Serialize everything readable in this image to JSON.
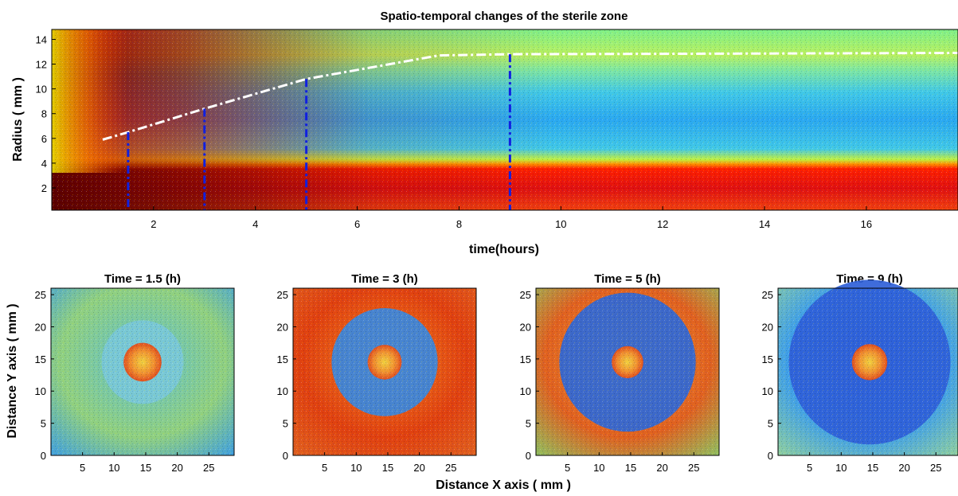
{
  "chart_data": [
    {
      "type": "heatmap",
      "title": "Spatio-temporal changes of the sterile zone",
      "xlabel": "time(hours)",
      "ylabel": "Radius ( mm )",
      "xlim": [
        0,
        17.8
      ],
      "ylim": [
        0.2,
        14.8
      ],
      "xticks": [
        2,
        4,
        6,
        8,
        10,
        12,
        14,
        16
      ],
      "yticks": [
        2,
        4,
        6,
        8,
        10,
        12,
        14
      ],
      "colormap": "jet",
      "boundary_line": {
        "style": "white dash-dot",
        "x": [
          1.0,
          1.5,
          3.0,
          5.0,
          7.6,
          9.0,
          17.8
        ],
        "y": [
          5.9,
          6.5,
          8.4,
          10.8,
          12.7,
          12.8,
          12.9
        ]
      },
      "markers": {
        "style": "blue dash-dot vertical",
        "x": [
          1.5,
          3.0,
          5.0,
          9.0
        ]
      }
    },
    {
      "type": "heatmap",
      "panels": [
        {
          "title": "Time = 1.5 (h)",
          "time_h": 1.5,
          "spot_radius_mm": 3.0,
          "ring_radius_mm": 6.5
        },
        {
          "title": "Time = 3 (h)",
          "time_h": 3,
          "spot_radius_mm": 2.7,
          "ring_radius_mm": 8.4
        },
        {
          "title": "Time = 5 (h)",
          "time_h": 5,
          "spot_radius_mm": 2.5,
          "ring_radius_mm": 10.8
        },
        {
          "title": "Time = 9 (h)",
          "time_h": 9,
          "spot_radius_mm": 2.8,
          "ring_radius_mm": 12.8
        }
      ],
      "xlabel": "Distance X axis ( mm )",
      "ylabel": "Distance Y axis ( mm )",
      "xlim": [
        0,
        29
      ],
      "ylim": [
        0,
        26
      ],
      "xticks": [
        5,
        10,
        15,
        20,
        25
      ],
      "yticks": [
        0,
        5,
        10,
        15,
        20,
        25
      ],
      "center_mm": [
        14.5,
        14.5
      ],
      "colormap": "jet"
    }
  ],
  "colors": {
    "dark_red": "#8b0000",
    "red": "#e01010",
    "orange": "#ff8000",
    "yellow": "#f5e020",
    "cyan": "#40d0e0",
    "blue": "#2a5ad8",
    "boundary": "#ffffff",
    "marker": "#1020e0"
  }
}
